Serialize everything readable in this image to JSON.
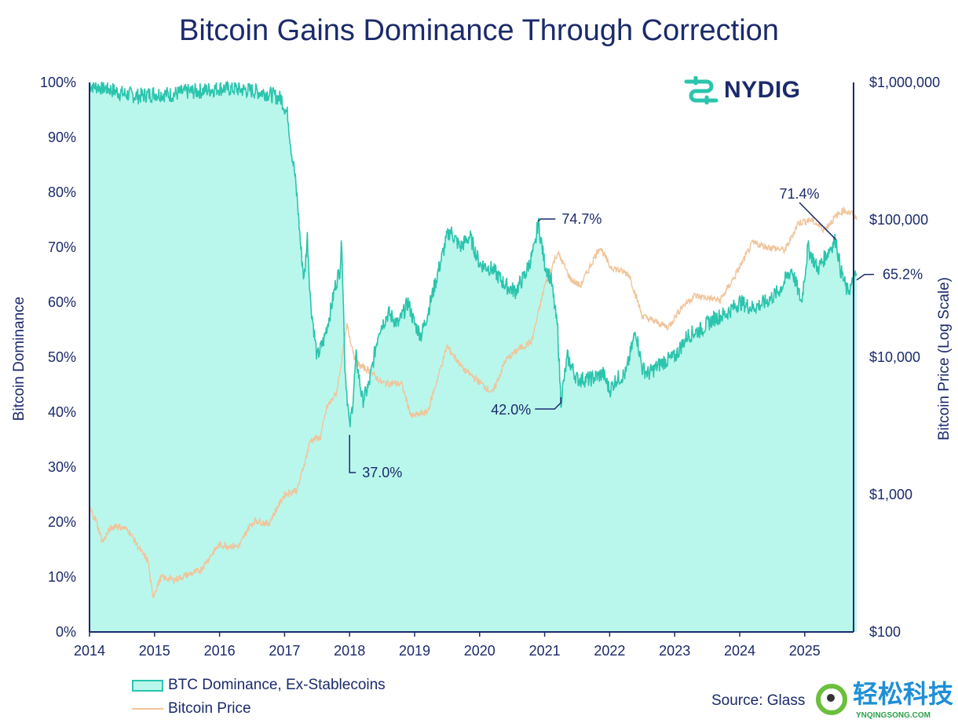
{
  "title": "Bitcoin Gains Dominance Through Correction",
  "logo": {
    "text": "NYDIG",
    "icon": "nydig-logo-icon",
    "color": "#2bc4ad"
  },
  "source": "Source: Glass",
  "watermark": {
    "text_cn": "轻松科技",
    "text_en": "YNQINGSONG.COM"
  },
  "chart_data": {
    "type": "area+line",
    "title": "Bitcoin Gains Dominance Through Correction",
    "xlabel": "",
    "ylabel_left": "Bitcoin Dominance",
    "ylabel_right": "Bitcoin Price (Log Scale)",
    "xlim": [
      2014,
      2025.75
    ],
    "x_ticks": [
      "2014",
      "2015",
      "2016",
      "2017",
      "2018",
      "2019",
      "2020",
      "2021",
      "2022",
      "2023",
      "2024",
      "2025"
    ],
    "ylim_left": [
      0,
      100
    ],
    "y_ticks_left": [
      "0%",
      "10%",
      "20%",
      "30%",
      "40%",
      "50%",
      "60%",
      "70%",
      "80%",
      "90%",
      "100%"
    ],
    "ylim_right": [
      100,
      1000000
    ],
    "y_scale_right": "log",
    "y_ticks_right": [
      "$100",
      "$1,000",
      "$10,000",
      "$100,000",
      "$1,000,000"
    ],
    "grid": false,
    "legend_position": "bottom-left",
    "series": [
      {
        "name": "BTC Dominance, Ex-Stablecoins",
        "type": "area",
        "axis": "left",
        "color": "#2bc4ad",
        "fill": "#b9f7ec",
        "x": [
          2014.0,
          2014.25,
          2014.5,
          2014.75,
          2015.0,
          2015.25,
          2015.5,
          2015.75,
          2016.0,
          2016.25,
          2016.5,
          2016.75,
          2016.95,
          2017.05,
          2017.1,
          2017.15,
          2017.2,
          2017.25,
          2017.3,
          2017.35,
          2017.4,
          2017.45,
          2017.5,
          2017.6,
          2017.7,
          2017.78,
          2017.85,
          2017.88,
          2017.93,
          2018.0,
          2018.05,
          2018.1,
          2018.2,
          2018.3,
          2018.45,
          2018.6,
          2018.75,
          2018.9,
          2019.0,
          2019.1,
          2019.2,
          2019.35,
          2019.5,
          2019.55,
          2019.7,
          2019.85,
          2020.0,
          2020.2,
          2020.4,
          2020.55,
          2020.7,
          2020.85,
          2020.9,
          2021.0,
          2021.1,
          2021.2,
          2021.25,
          2021.35,
          2021.5,
          2021.7,
          2021.9,
          2022.0,
          2022.1,
          2022.25,
          2022.4,
          2022.5,
          2022.6,
          2022.8,
          2023.0,
          2023.2,
          2023.4,
          2023.6,
          2023.8,
          2024.0,
          2024.2,
          2024.4,
          2024.6,
          2024.8,
          2024.95,
          2025.05,
          2025.2,
          2025.3,
          2025.4,
          2025.48,
          2025.55,
          2025.65,
          2025.72,
          2025.8
        ],
        "values": [
          99.5,
          99,
          98,
          97.5,
          98,
          97.8,
          98.3,
          98.5,
          99,
          98.8,
          98.5,
          98,
          97,
          94,
          88,
          84,
          78,
          70,
          64,
          72,
          60,
          55,
          50,
          53,
          58,
          63,
          66,
          71,
          48,
          37,
          42,
          50,
          42,
          45,
          55,
          58,
          56,
          60,
          56,
          54,
          58,
          65,
          72,
          73,
          70,
          72,
          67,
          66,
          63,
          62,
          65,
          70,
          74.7,
          67,
          64,
          55,
          42,
          50,
          46,
          46,
          47,
          44,
          46,
          47,
          55,
          48,
          47,
          49,
          50,
          54,
          55,
          57,
          58,
          60,
          59,
          60,
          62,
          66,
          60,
          70,
          66,
          68,
          70,
          71.4,
          66,
          62,
          63,
          65.2
        ]
      },
      {
        "name": "Bitcoin Price",
        "type": "line",
        "axis": "right",
        "color": "#f0c49a",
        "x": [
          2014.0,
          2014.1,
          2014.2,
          2014.3,
          2014.4,
          2014.6,
          2014.8,
          2014.9,
          2014.97,
          2015.1,
          2015.3,
          2015.5,
          2015.7,
          2015.9,
          2016.0,
          2016.3,
          2016.45,
          2016.55,
          2016.75,
          2017.0,
          2017.2,
          2017.4,
          2017.55,
          2017.65,
          2017.8,
          2017.96,
          2018.1,
          2018.3,
          2018.5,
          2018.8,
          2018.95,
          2019.2,
          2019.45,
          2019.5,
          2019.75,
          2019.9,
          2020.2,
          2020.4,
          2020.6,
          2020.8,
          2021.0,
          2021.2,
          2021.4,
          2021.55,
          2021.85,
          2022.0,
          2022.3,
          2022.5,
          2022.9,
          2023.1,
          2023.3,
          2023.7,
          2023.9,
          2024.2,
          2024.4,
          2024.7,
          2024.9,
          2025.1,
          2025.3,
          2025.5,
          2025.6,
          2025.75,
          2025.8
        ],
        "values": [
          800,
          650,
          450,
          550,
          600,
          550,
          380,
          330,
          180,
          250,
          240,
          260,
          280,
          380,
          430,
          420,
          580,
          650,
          610,
          1000,
          1100,
          2500,
          2600,
          4300,
          5500,
          17000,
          9000,
          8000,
          6500,
          6400,
          3700,
          4000,
          10000,
          12000,
          8200,
          7200,
          5500,
          9500,
          11500,
          13000,
          33000,
          58000,
          37000,
          33000,
          64000,
          46000,
          40000,
          20000,
          16500,
          23000,
          28000,
          26000,
          37000,
          68000,
          64000,
          60000,
          95000,
          100000,
          85000,
          108000,
          118000,
          110000,
          100000
        ]
      }
    ],
    "annotations": [
      {
        "text": "37.0%",
        "x": 2018.0,
        "y": 37.0
      },
      {
        "text": "74.7%",
        "x": 2020.9,
        "y": 74.7
      },
      {
        "text": "42.0%",
        "x": 2021.25,
        "y": 42.0
      },
      {
        "text": "71.4%",
        "x": 2025.48,
        "y": 71.4
      },
      {
        "text": "65.2%",
        "x": 2025.8,
        "y": 65.2
      }
    ]
  }
}
